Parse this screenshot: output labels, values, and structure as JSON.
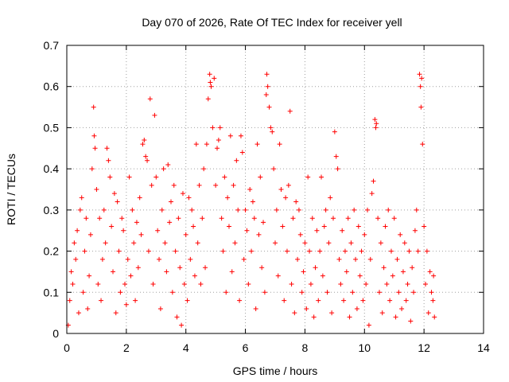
{
  "chart_data": {
    "type": "scatter",
    "title": "Day 070 of 2026, Rate Of TEC Index for receiver yell",
    "xlabel": "GPS time / hours",
    "ylabel": "ROTI / TECUs",
    "xlim": [
      0,
      14
    ],
    "ylim": [
      0,
      0.7
    ],
    "x_ticks": [
      "0",
      "2",
      "4",
      "6",
      "8",
      "10",
      "12",
      "14"
    ],
    "y_ticks": [
      "0",
      "0.1",
      "0.2",
      "0.3",
      "0.4",
      "0.5",
      "0.6",
      "0.7"
    ],
    "x_tick_values": [
      0,
      2,
      4,
      6,
      8,
      10,
      12,
      14
    ],
    "y_tick_values": [
      0,
      0.1,
      0.2,
      0.3,
      0.4,
      0.5,
      0.6,
      0.7
    ],
    "grid": true,
    "marker": "plus",
    "color": "#ff0000",
    "series": [
      {
        "name": "ROTI",
        "points": [
          [
            0.05,
            0.02
          ],
          [
            0.1,
            0.08
          ],
          [
            0.15,
            0.15
          ],
          [
            0.2,
            0.12
          ],
          [
            0.25,
            0.22
          ],
          [
            0.3,
            0.18
          ],
          [
            0.35,
            0.25
          ],
          [
            0.4,
            0.05
          ],
          [
            0.45,
            0.3
          ],
          [
            0.5,
            0.33
          ],
          [
            0.55,
            0.1
          ],
          [
            0.6,
            0.2
          ],
          [
            0.65,
            0.28
          ],
          [
            0.7,
            0.06
          ],
          [
            0.75,
            0.14
          ],
          [
            0.8,
            0.24
          ],
          [
            0.85,
            0.4
          ],
          [
            0.9,
            0.55
          ],
          [
            0.92,
            0.48
          ],
          [
            0.95,
            0.45
          ],
          [
            1.0,
            0.35
          ],
          [
            1.05,
            0.12
          ],
          [
            1.1,
            0.28
          ],
          [
            1.15,
            0.08
          ],
          [
            1.2,
            0.18
          ],
          [
            1.25,
            0.3
          ],
          [
            1.3,
            0.22
          ],
          [
            1.35,
            0.45
          ],
          [
            1.4,
            0.42
          ],
          [
            1.45,
            0.38
          ],
          [
            1.5,
            0.26
          ],
          [
            1.55,
            0.15
          ],
          [
            1.6,
            0.34
          ],
          [
            1.65,
            0.05
          ],
          [
            1.7,
            0.32
          ],
          [
            1.75,
            0.2
          ],
          [
            1.8,
            0.1
          ],
          [
            1.85,
            0.28
          ],
          [
            1.9,
            0.25
          ],
          [
            1.95,
            0.12
          ],
          [
            2.0,
            0.07
          ],
          [
            2.05,
            0.18
          ],
          [
            2.1,
            0.38
          ],
          [
            2.15,
            0.14
          ],
          [
            2.2,
            0.3
          ],
          [
            2.25,
            0.22
          ],
          [
            2.3,
            0.08
          ],
          [
            2.35,
            0.27
          ],
          [
            2.4,
            0.16
          ],
          [
            2.45,
            0.33
          ],
          [
            2.5,
            0.24
          ],
          [
            2.55,
            0.46
          ],
          [
            2.6,
            0.47
          ],
          [
            2.65,
            0.43
          ],
          [
            2.7,
            0.42
          ],
          [
            2.75,
            0.2
          ],
          [
            2.8,
            0.57
          ],
          [
            2.85,
            0.36
          ],
          [
            2.9,
            0.12
          ],
          [
            2.95,
            0.53
          ],
          [
            3.0,
            0.38
          ],
          [
            3.05,
            0.25
          ],
          [
            3.1,
            0.18
          ],
          [
            3.15,
            0.06
          ],
          [
            3.2,
            0.3
          ],
          [
            3.25,
            0.4
          ],
          [
            3.3,
            0.22
          ],
          [
            3.35,
            0.15
          ],
          [
            3.4,
            0.41
          ],
          [
            3.45,
            0.27
          ],
          [
            3.5,
            0.32
          ],
          [
            3.55,
            0.1
          ],
          [
            3.6,
            0.36
          ],
          [
            3.65,
            0.2
          ],
          [
            3.7,
            0.04
          ],
          [
            3.75,
            0.28
          ],
          [
            3.8,
            0.16
          ],
          [
            3.85,
            0.02
          ],
          [
            3.9,
            0.34
          ],
          [
            3.95,
            0.12
          ],
          [
            4.0,
            0.24
          ],
          [
            4.05,
            0.08
          ],
          [
            4.1,
            0.33
          ],
          [
            4.15,
            0.18
          ],
          [
            4.2,
            0.3
          ],
          [
            4.25,
            0.26
          ],
          [
            4.3,
            0.14
          ],
          [
            4.35,
            0.46
          ],
          [
            4.4,
            0.22
          ],
          [
            4.45,
            0.36
          ],
          [
            4.5,
            0.12
          ],
          [
            4.55,
            0.28
          ],
          [
            4.6,
            0.4
          ],
          [
            4.65,
            0.16
          ],
          [
            4.7,
            0.46
          ],
          [
            4.75,
            0.57
          ],
          [
            4.8,
            0.63
          ],
          [
            4.82,
            0.61
          ],
          [
            4.85,
            0.6
          ],
          [
            4.9,
            0.5
          ],
          [
            4.95,
            0.62
          ],
          [
            5.0,
            0.36
          ],
          [
            5.05,
            0.45
          ],
          [
            5.1,
            0.47
          ],
          [
            5.15,
            0.5
          ],
          [
            5.2,
            0.28
          ],
          [
            5.25,
            0.2
          ],
          [
            5.3,
            0.38
          ],
          [
            5.35,
            0.1
          ],
          [
            5.4,
            0.33
          ],
          [
            5.45,
            0.26
          ],
          [
            5.5,
            0.48
          ],
          [
            5.55,
            0.15
          ],
          [
            5.6,
            0.36
          ],
          [
            5.65,
            0.22
          ],
          [
            5.7,
            0.42
          ],
          [
            5.75,
            0.3
          ],
          [
            5.8,
            0.08
          ],
          [
            5.85,
            0.48
          ],
          [
            5.9,
            0.44
          ],
          [
            5.95,
            0.18
          ],
          [
            6.0,
            0.3
          ],
          [
            6.05,
            0.25
          ],
          [
            6.1,
            0.12
          ],
          [
            6.15,
            0.35
          ],
          [
            6.2,
            0.2
          ],
          [
            6.25,
            0.32
          ],
          [
            6.3,
            0.28
          ],
          [
            6.35,
            0.06
          ],
          [
            6.4,
            0.46
          ],
          [
            6.45,
            0.24
          ],
          [
            6.5,
            0.38
          ],
          [
            6.55,
            0.16
          ],
          [
            6.6,
            0.27
          ],
          [
            6.65,
            0.1
          ],
          [
            6.7,
            0.58
          ],
          [
            6.72,
            0.63
          ],
          [
            6.75,
            0.6
          ],
          [
            6.8,
            0.55
          ],
          [
            6.85,
            0.5
          ],
          [
            6.9,
            0.49
          ],
          [
            6.95,
            0.4
          ],
          [
            7.0,
            0.22
          ],
          [
            7.05,
            0.3
          ],
          [
            7.1,
            0.14
          ],
          [
            7.15,
            0.46
          ],
          [
            7.2,
            0.35
          ],
          [
            7.25,
            0.26
          ],
          [
            7.3,
            0.08
          ],
          [
            7.35,
            0.33
          ],
          [
            7.4,
            0.2
          ],
          [
            7.45,
            0.36
          ],
          [
            7.5,
            0.54
          ],
          [
            7.55,
            0.12
          ],
          [
            7.6,
            0.28
          ],
          [
            7.65,
            0.05
          ],
          [
            7.7,
            0.32
          ],
          [
            7.75,
            0.18
          ],
          [
            7.8,
            0.3
          ],
          [
            7.85,
            0.24
          ],
          [
            7.9,
            0.1
          ],
          [
            7.95,
            0.15
          ],
          [
            8.0,
            0.22
          ],
          [
            8.05,
            0.06
          ],
          [
            8.1,
            0.38
          ],
          [
            8.15,
            0.2
          ],
          [
            8.2,
            0.12
          ],
          [
            8.25,
            0.28
          ],
          [
            8.3,
            0.04
          ],
          [
            8.35,
            0.16
          ],
          [
            8.4,
            0.25
          ],
          [
            8.45,
            0.08
          ],
          [
            8.5,
            0.2
          ],
          [
            8.55,
            0.38
          ],
          [
            8.6,
            0.14
          ],
          [
            8.65,
            0.26
          ],
          [
            8.7,
            0.3
          ],
          [
            8.75,
            0.1
          ],
          [
            8.8,
            0.22
          ],
          [
            8.85,
            0.33
          ],
          [
            8.9,
            0.05
          ],
          [
            8.95,
            0.28
          ],
          [
            9.0,
            0.49
          ],
          [
            9.05,
            0.43
          ],
          [
            9.1,
            0.4
          ],
          [
            9.15,
            0.18
          ],
          [
            9.2,
            0.12
          ],
          [
            9.25,
            0.25
          ],
          [
            9.3,
            0.08
          ],
          [
            9.35,
            0.2
          ],
          [
            9.4,
            0.15
          ],
          [
            9.45,
            0.28
          ],
          [
            9.5,
            0.04
          ],
          [
            9.55,
            0.22
          ],
          [
            9.6,
            0.1
          ],
          [
            9.65,
            0.3
          ],
          [
            9.7,
            0.18
          ],
          [
            9.75,
            0.06
          ],
          [
            9.8,
            0.26
          ],
          [
            9.85,
            0.14
          ],
          [
            9.9,
            0.2
          ],
          [
            9.95,
            0.08
          ],
          [
            10.0,
            0.24
          ],
          [
            10.05,
            0.12
          ],
          [
            10.1,
            0.3
          ],
          [
            10.15,
            0.02
          ],
          [
            10.2,
            0.18
          ],
          [
            10.25,
            0.34
          ],
          [
            10.3,
            0.37
          ],
          [
            10.35,
            0.52
          ],
          [
            10.38,
            0.5
          ],
          [
            10.4,
            0.51
          ],
          [
            10.45,
            0.28
          ],
          [
            10.5,
            0.1
          ],
          [
            10.55,
            0.22
          ],
          [
            10.6,
            0.05
          ],
          [
            10.65,
            0.16
          ],
          [
            10.7,
            0.26
          ],
          [
            10.75,
            0.12
          ],
          [
            10.8,
            0.3
          ],
          [
            10.85,
            0.08
          ],
          [
            10.9,
            0.2
          ],
          [
            10.95,
            0.14
          ],
          [
            11.0,
            0.28
          ],
          [
            11.05,
            0.04
          ],
          [
            11.1,
            0.18
          ],
          [
            11.15,
            0.1
          ],
          [
            11.2,
            0.24
          ],
          [
            11.25,
            0.06
          ],
          [
            11.3,
            0.15
          ],
          [
            11.35,
            0.22
          ],
          [
            11.4,
            0.08
          ],
          [
            11.45,
            0.12
          ],
          [
            11.5,
            0.2
          ],
          [
            11.55,
            0.03
          ],
          [
            11.6,
            0.16
          ],
          [
            11.65,
            0.1
          ],
          [
            11.7,
            0.25
          ],
          [
            11.75,
            0.3
          ],
          [
            11.8,
            0.2
          ],
          [
            11.85,
            0.63
          ],
          [
            11.88,
            0.6
          ],
          [
            11.9,
            0.55
          ],
          [
            11.92,
            0.62
          ],
          [
            11.95,
            0.46
          ],
          [
            12.0,
            0.26
          ],
          [
            12.05,
            0.12
          ],
          [
            12.1,
            0.2
          ],
          [
            12.15,
            0.05
          ],
          [
            12.2,
            0.15
          ],
          [
            12.25,
            0.1
          ],
          [
            12.3,
            0.08
          ],
          [
            12.32,
            0.14
          ],
          [
            12.35,
            0.04
          ]
        ]
      }
    ]
  }
}
